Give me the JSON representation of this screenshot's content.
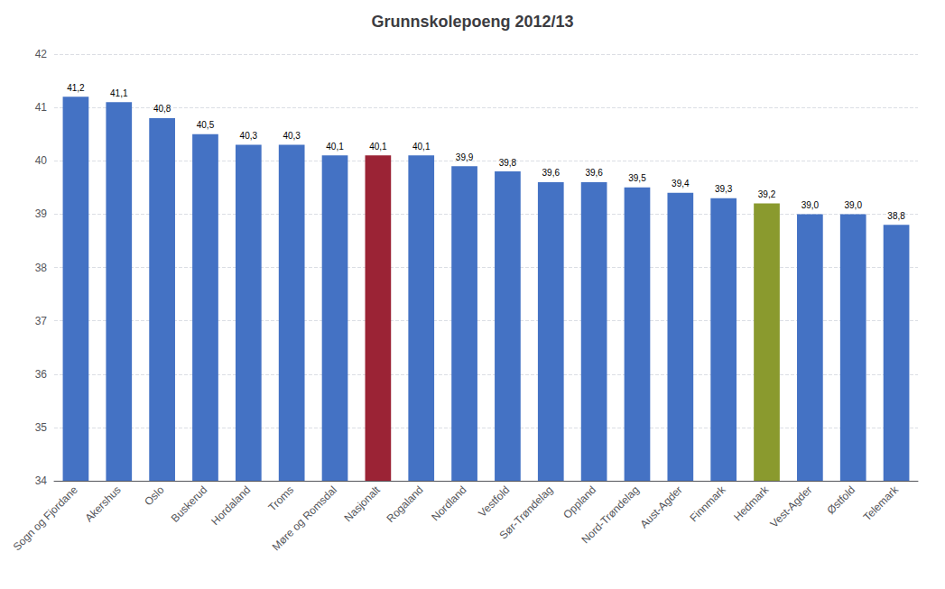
{
  "chart_data": {
    "type": "bar",
    "title": "Grunnskolepoeng 2012/13",
    "categories": [
      "Sogn og Fjordane",
      "Akershus",
      "Oslo",
      "Buskerud",
      "Hordaland",
      "Troms",
      "Møre og Romsdal",
      "Nasjonalt",
      "Rogaland",
      "Nordland",
      "Vestfold",
      "Sør-Trøndelag",
      "Oppland",
      "Nord-Trøndelag",
      "Aust-Agder",
      "Finnmark",
      "Hedmark",
      "Vest-Agder",
      "Østfold",
      "Telemark"
    ],
    "values": [
      41.2,
      41.1,
      40.8,
      40.5,
      40.3,
      40.3,
      40.1,
      40.1,
      40.1,
      39.9,
      39.8,
      39.6,
      39.6,
      39.5,
      39.4,
      39.3,
      39.2,
      39.0,
      39.0,
      38.8
    ],
    "value_labels": [
      "41,2",
      "41,1",
      "40,8",
      "40,5",
      "40,3",
      "40,3",
      "40,1",
      "40,1",
      "40,1",
      "39,9",
      "39,8",
      "39,6",
      "39,6",
      "39,5",
      "39,4",
      "39,3",
      "39,2",
      "39,0",
      "39,0",
      "38,8"
    ],
    "colors": [
      "#4472C4",
      "#4472C4",
      "#4472C4",
      "#4472C4",
      "#4472C4",
      "#4472C4",
      "#4472C4",
      "#9B2335",
      "#4472C4",
      "#4472C4",
      "#4472C4",
      "#4472C4",
      "#4472C4",
      "#4472C4",
      "#4472C4",
      "#4472C4",
      "#8A9A2E",
      "#4472C4",
      "#4472C4",
      "#4472C4"
    ],
    "ylim": [
      34,
      42
    ],
    "yticks": [
      34,
      35,
      36,
      37,
      38,
      39,
      40,
      41,
      42
    ],
    "grid": true,
    "data_labels": true
  }
}
